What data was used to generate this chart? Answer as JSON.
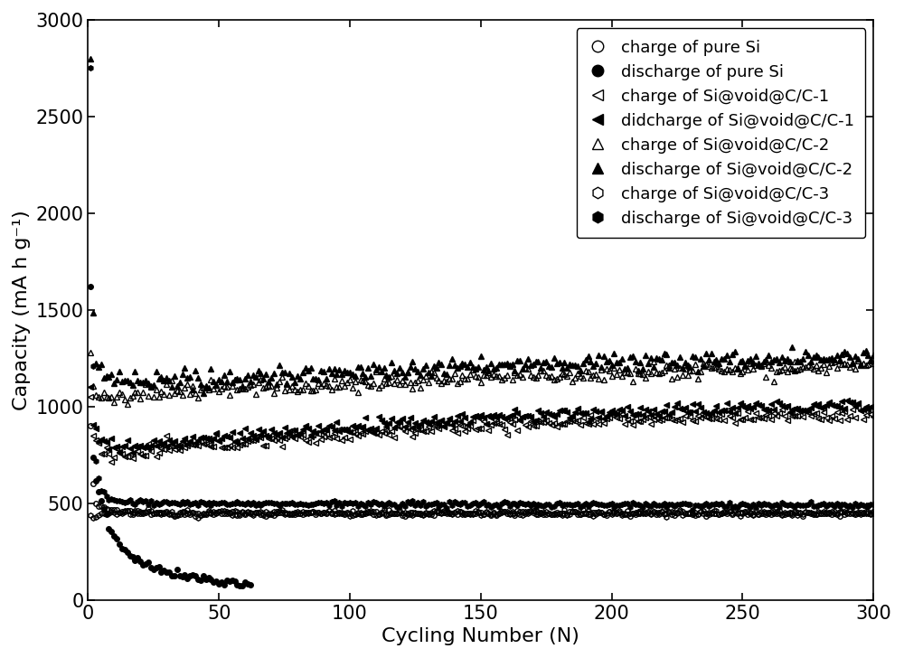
{
  "title": "",
  "xlabel": "Cycling Number (N)",
  "ylabel": "Capacity (mA h g⁻¹)",
  "xlim": [
    0,
    300
  ],
  "ylim": [
    0,
    3000
  ],
  "xticks": [
    0,
    50,
    100,
    150,
    200,
    250,
    300
  ],
  "yticks": [
    0,
    500,
    1000,
    1500,
    2000,
    2500,
    3000
  ],
  "legend_entries": [
    {
      "label": "charge of pure Si",
      "marker": "o",
      "filled": false
    },
    {
      "label": "discharge of pure Si",
      "marker": "o",
      "filled": true
    },
    {
      "label": "charge of Si@void@C/C-1",
      "marker": "<",
      "filled": false
    },
    {
      "label": "didcharge of Si@void@C/C-1",
      "marker": "<",
      "filled": true
    },
    {
      "label": "charge of Si@void@C/C-2",
      "marker": "^",
      "filled": false
    },
    {
      "label": "discharge of Si@void@C/C-2",
      "marker": "^",
      "filled": true
    },
    {
      "label": "charge of Si@void@C/C-3",
      "marker": "h",
      "filled": false
    },
    {
      "label": "discharge of Si@void@C/C-3",
      "marker": "h",
      "filled": true
    }
  ],
  "color": "black",
  "markersize": 4,
  "linewidth": 0,
  "font_size": 16,
  "tick_label_size": 15,
  "legend_font_size": 13,
  "figsize": [
    10.0,
    7.28
  ],
  "dpi": 100
}
